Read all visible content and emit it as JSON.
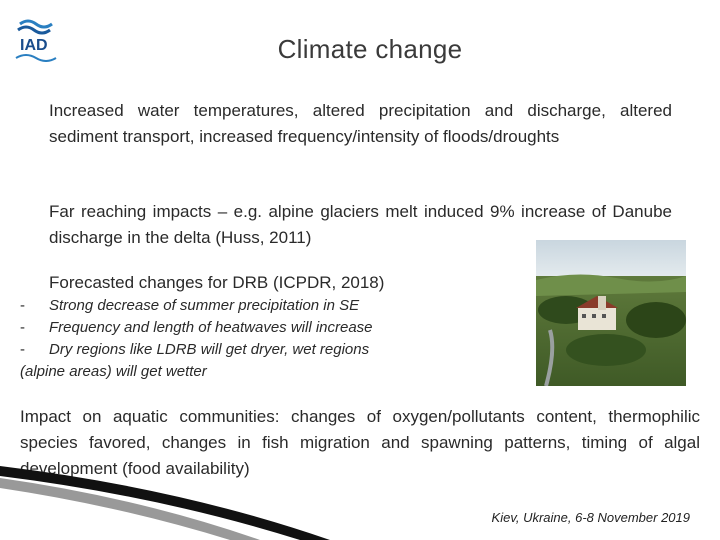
{
  "logo": {
    "text": "IAD",
    "icon": "iad-wave-logo"
  },
  "slide": {
    "title": "Climate change",
    "bullets": [
      "Increased water temperatures, altered precipitation and discharge, altered sediment transport, increased frequency/intensity of floods/droughts",
      "Far reaching impacts – e.g. alpine glaciers melt induced 9% increase of Danube discharge in the delta (Huss, 2011)",
      "Forecasted changes for DRB (ICPDR, 2018)"
    ],
    "sub_items": [
      {
        "dash": "-",
        "text": "Strong decrease of summer precipitation in SE"
      },
      {
        "dash": "-",
        "text": "Frequency and length of heatwaves will increase"
      },
      {
        "dash": "-",
        "text": "Dry regions like LDRB will get dryer, wet regions"
      },
      {
        "dash": "",
        "text": "(alpine areas) will get wetter"
      }
    ],
    "bullet_mark": "",
    "impact_paragraph": "Impact on aquatic communities: changes of oxygen/pollutants content, thermophilic species favored, changes in fish migration and spawning patterns, timing of algal development (food availability)",
    "footer": "Kiev, Ukraine, 6-8 November 2019"
  },
  "colors": {
    "logo_blue": "#1a5a9c",
    "title": "#3a3a3a",
    "swoosh": "#111111"
  }
}
